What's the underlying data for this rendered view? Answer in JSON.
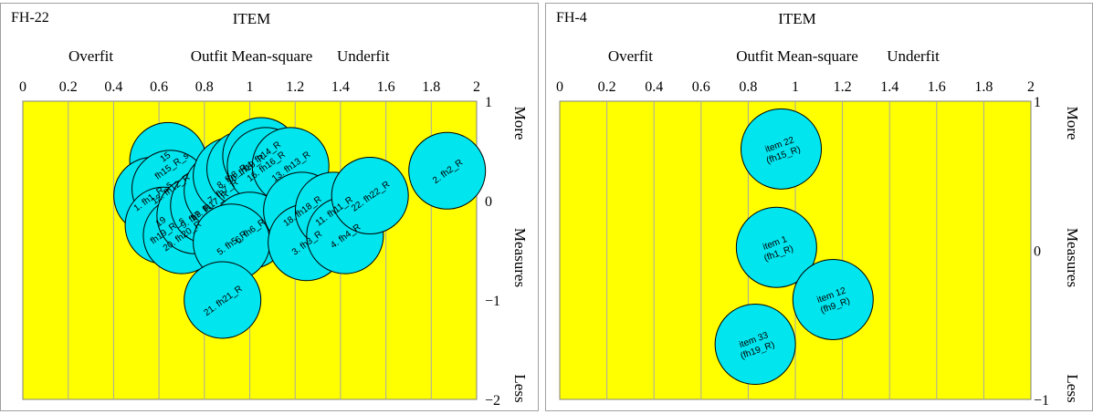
{
  "chart_data": [
    {
      "type": "bubble",
      "panel_title": "FH-22",
      "title": "ITEM",
      "subtitle": "Outfit Mean-square",
      "left_note": "Overfit",
      "right_note": "Underfit",
      "x_ticks": [
        "0",
        "0.2",
        "0.4",
        "0.6",
        "0.8",
        "1",
        "1.2",
        "1.4",
        "1.6",
        "1.8",
        "2"
      ],
      "xlim": [
        0,
        2
      ],
      "ylim": [
        -2,
        1
      ],
      "y_ticks": [
        "1",
        "0",
        "−1",
        "−2"
      ],
      "y_top": "More",
      "y_label": "Measures",
      "y_bottom": "Less",
      "plot_color": "#ffff00",
      "bubble_color": "#00e5ee",
      "bubbles": [
        {
          "label": [
            "15",
            "fh15_R_s"
          ],
          "x": 0.64,
          "y": 0.4
        },
        {
          "label": [
            "1. fh1_R_s"
          ],
          "x": 0.57,
          "y": 0.05
        },
        {
          "label": [
            "12. fh12_R"
          ],
          "x": 0.65,
          "y": 0.12
        },
        {
          "label": [
            "19",
            "fh19_R_s"
          ],
          "x": 0.62,
          "y": -0.25
        },
        {
          "label": [
            "20. fh20_R"
          ],
          "x": 0.7,
          "y": -0.35
        },
        {
          "label": [
            "9. fh9_R"
          ],
          "x": 0.76,
          "y": -0.15
        },
        {
          "label": [
            "17. fh17_R"
          ],
          "x": 0.82,
          "y": -0.05
        },
        {
          "label": [
            "7. fh7_R"
          ],
          "x": 0.88,
          "y": 0.1
        },
        {
          "label": [
            "8. fh8_R"
          ],
          "x": 0.92,
          "y": 0.25
        },
        {
          "label": [
            "10. fh10_R"
          ],
          "x": 0.98,
          "y": 0.32
        },
        {
          "label": [
            "14. fh14_R"
          ],
          "x": 1.05,
          "y": 0.45
        },
        {
          "label": [
            "16. fh16_R"
          ],
          "x": 1.07,
          "y": 0.35
        },
        {
          "label": [
            "13. fh13_R"
          ],
          "x": 1.18,
          "y": 0.35
        },
        {
          "label": [
            "6. fh6_R"
          ],
          "x": 1.0,
          "y": -0.3
        },
        {
          "label": [
            "5. fh5_R"
          ],
          "x": 0.92,
          "y": -0.42
        },
        {
          "label": [
            "18. fh18_R"
          ],
          "x": 1.23,
          "y": -0.1
        },
        {
          "label": [
            "3. fh3_R"
          ],
          "x": 1.25,
          "y": -0.42
        },
        {
          "label": [
            "11. fh11_R"
          ],
          "x": 1.37,
          "y": -0.1
        },
        {
          "label": [
            "4. fh4_R"
          ],
          "x": 1.42,
          "y": -0.35
        },
        {
          "label": [
            "22. fh22_R"
          ],
          "x": 1.53,
          "y": 0.05
        },
        {
          "label": [
            "2. fh2_R"
          ],
          "x": 1.87,
          "y": 0.3
        },
        {
          "label": [
            "21. fh21_R"
          ],
          "x": 0.88,
          "y": -1.0
        }
      ]
    },
    {
      "type": "bubble",
      "panel_title": "FH-4",
      "title": "ITEM",
      "subtitle": "Outfit Mean-square",
      "left_note": "Overfit",
      "right_note": "Underfit",
      "x_ticks": [
        "0",
        "0.2",
        "0.4",
        "0.6",
        "0.8",
        "1",
        "1.2",
        "1.4",
        "1.6",
        "1.8",
        "2"
      ],
      "xlim": [
        0,
        2
      ],
      "ylim": [
        -1,
        1
      ],
      "y_ticks": [
        "1",
        "0",
        "−1"
      ],
      "y_top": "More",
      "y_label": "Measures",
      "y_bottom": "Less",
      "plot_color": "#ffff00",
      "bubble_color": "#00e5ee",
      "bubbles": [
        {
          "label": [
            "item 22",
            "(fh15_R)"
          ],
          "x": 0.94,
          "y": 0.68
        },
        {
          "label": [
            "item 1",
            "(fh1_R)"
          ],
          "x": 0.92,
          "y": 0.02
        },
        {
          "label": [
            "item 12",
            "(fh9_R)"
          ],
          "x": 1.16,
          "y": -0.33
        },
        {
          "label": [
            "item 33",
            "(fh19_R)"
          ],
          "x": 0.83,
          "y": -0.63
        }
      ]
    }
  ]
}
